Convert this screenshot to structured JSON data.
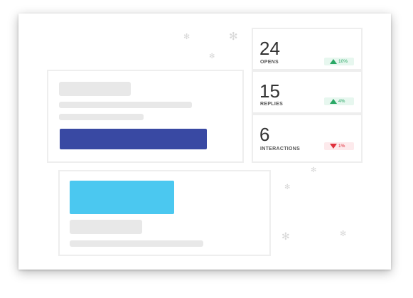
{
  "stats": [
    {
      "value": "24",
      "label": "OPENS",
      "change": "10%",
      "trend": "up"
    },
    {
      "value": "15",
      "label": "REPLIES",
      "change": "4%",
      "trend": "up"
    },
    {
      "value": "6",
      "label": "INTERACTIONS",
      "change": "1%",
      "trend": "down"
    }
  ],
  "colors": {
    "primary_button": "#3949a3",
    "secondary_button": "#4bc8f0",
    "trend_up": "#2aa866",
    "trend_down": "#e0303c"
  },
  "icons": [
    "trend-up-icon",
    "trend-down-icon",
    "decorative-flake-icon"
  ]
}
